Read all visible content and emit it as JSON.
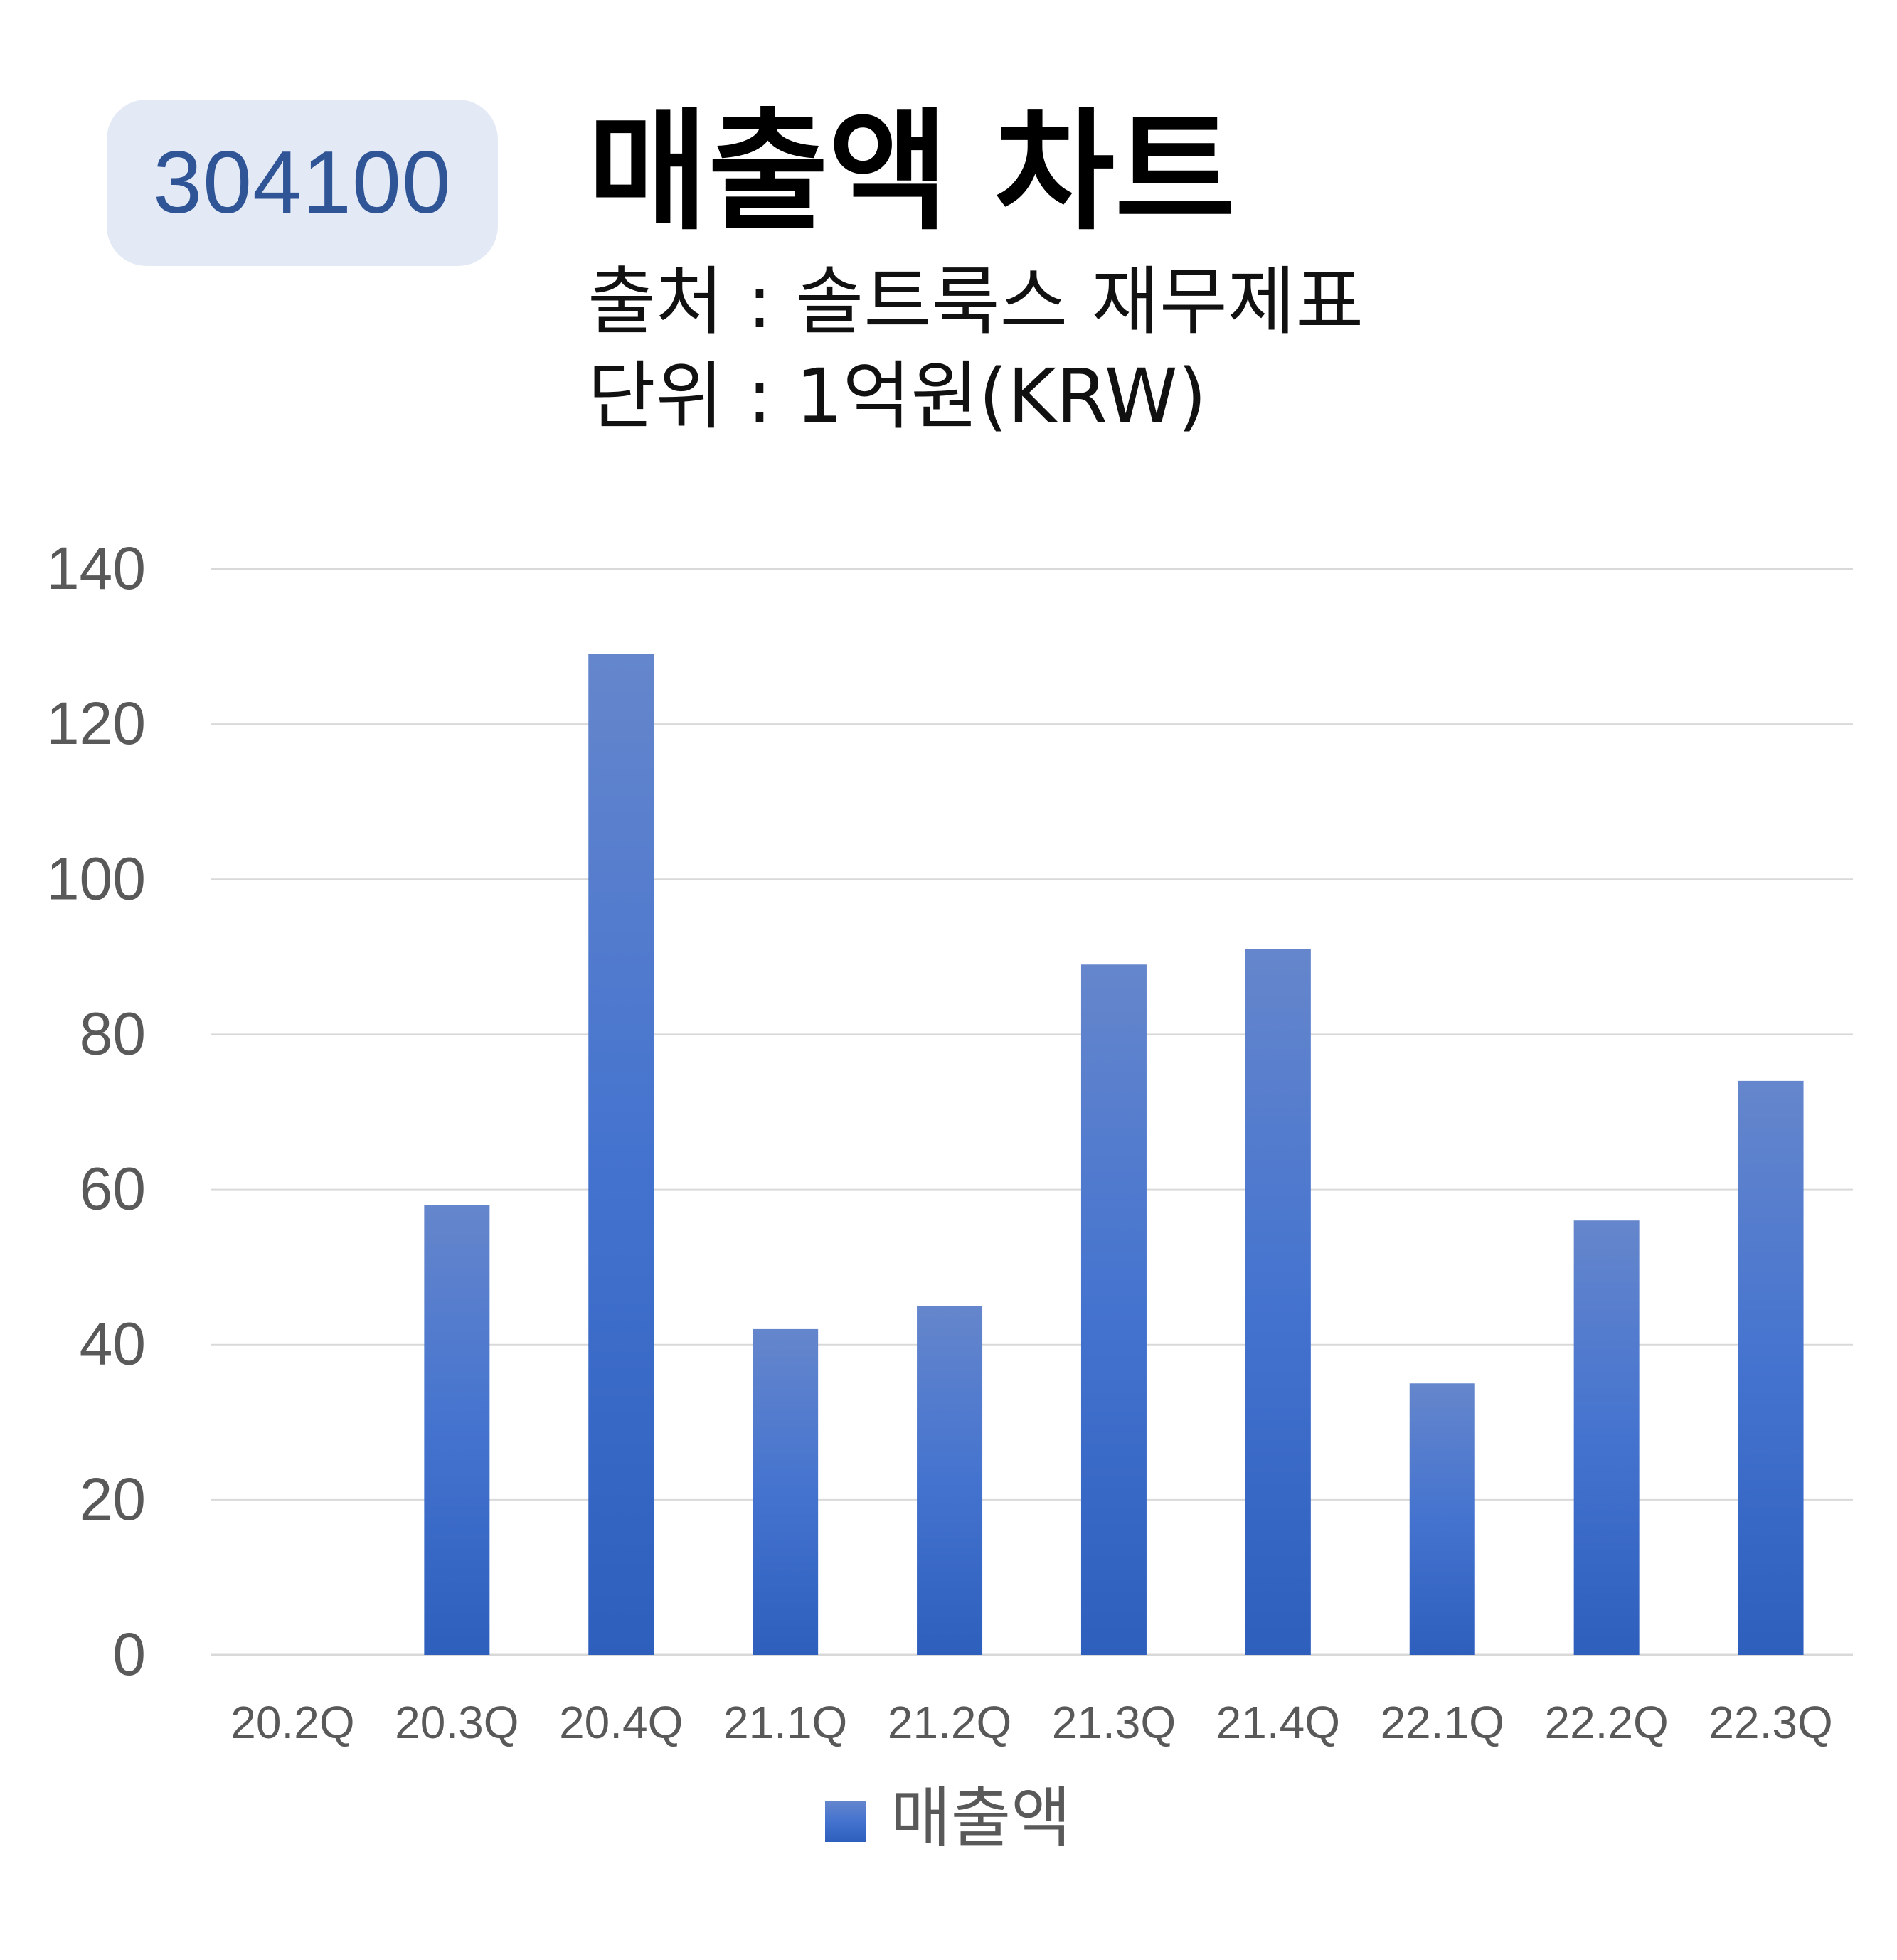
{
  "badge": {
    "code": "304100",
    "bg_color": "#e3e9f5",
    "text_color": "#2f5597"
  },
  "header": {
    "title": "매출액 차트",
    "source_line": "출처 : 솔트룩스 재무제표",
    "unit_line": "단위 : 1억원(KRW)"
  },
  "chart_data": {
    "type": "bar",
    "categories": [
      "20.2Q",
      "20.3Q",
      "20.4Q",
      "21.1Q",
      "21.2Q",
      "21.3Q",
      "21.4Q",
      "22.1Q",
      "22.2Q",
      "22.3Q"
    ],
    "series": [
      {
        "name": "매출액",
        "values": [
          0,
          58,
          129,
          42,
          45,
          89,
          91,
          35,
          56,
          74
        ]
      }
    ],
    "ylim": [
      0,
      140
    ],
    "yticks": [
      "0",
      "20",
      "40",
      "60",
      "80",
      "100",
      "120",
      "140"
    ],
    "grid": true,
    "legend": "bottom-center",
    "colors": {
      "bar_top": "#6586cc",
      "bar_mid": "#4473cf",
      "bar_bottom": "#2e5fbd",
      "grid": "#d9d9d9",
      "axis_text": "#595959"
    }
  }
}
